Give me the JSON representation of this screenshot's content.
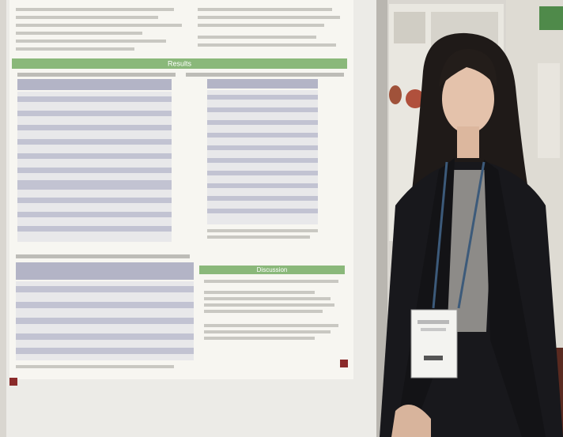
{
  "poster": {
    "results_heading": "Results",
    "discussion_heading": "Discussion"
  }
}
